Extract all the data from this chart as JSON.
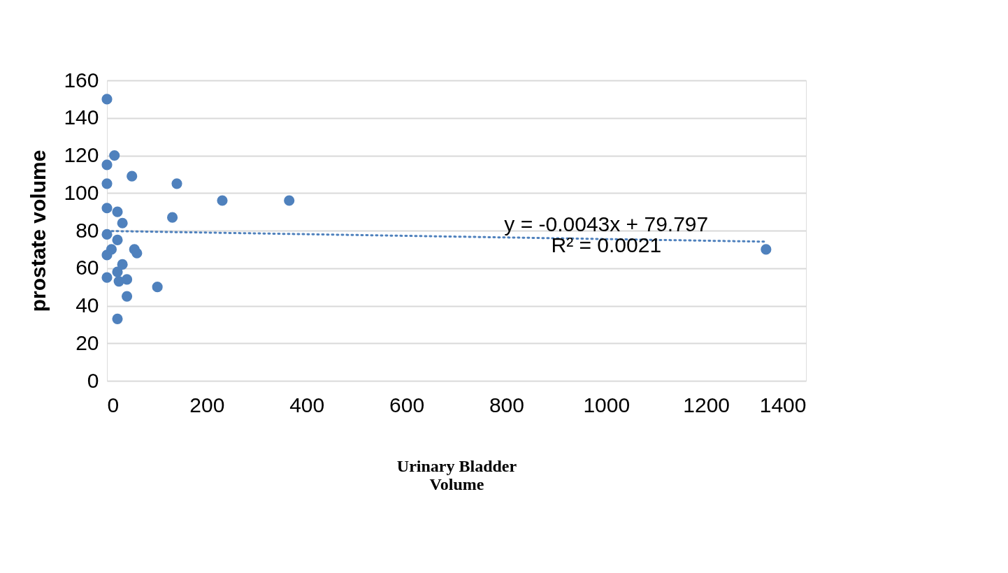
{
  "chart_data": {
    "type": "scatter",
    "xlabel": "Urinary Bladder Volume",
    "ylabel": "prostate volume",
    "xlim": [
      0,
      1400
    ],
    "xticks": [
      0,
      200,
      400,
      600,
      800,
      1000,
      1200,
      1400
    ],
    "ylim": [
      0,
      160
    ],
    "yticks": [
      0,
      20,
      40,
      60,
      80,
      100,
      120,
      140,
      160
    ],
    "grid": "y",
    "annotations": [
      "y = -0.0043x + 79.797",
      "R² = 0.0021"
    ],
    "series": [
      {
        "color": "#4f81bd",
        "marker": "circle",
        "x": [
          0,
          15,
          0,
          50,
          0,
          140,
          231,
          365,
          0,
          21,
          131,
          31,
          0,
          21,
          55,
          60,
          9,
          0,
          31,
          21,
          0,
          24,
          40,
          101,
          40,
          21,
          1320
        ],
        "values": [
          150,
          120,
          115,
          109,
          105,
          105,
          96,
          96,
          92,
          90,
          87,
          84,
          78,
          75,
          70,
          68,
          70,
          67,
          62,
          58,
          55,
          53,
          54,
          50,
          45,
          33,
          70
        ]
      },
      {
        "type": "line",
        "color": "#4f81bd",
        "line_style": "dotted",
        "x": [
          0,
          1320
        ],
        "values": [
          79.8,
          74.1
        ]
      }
    ]
  }
}
